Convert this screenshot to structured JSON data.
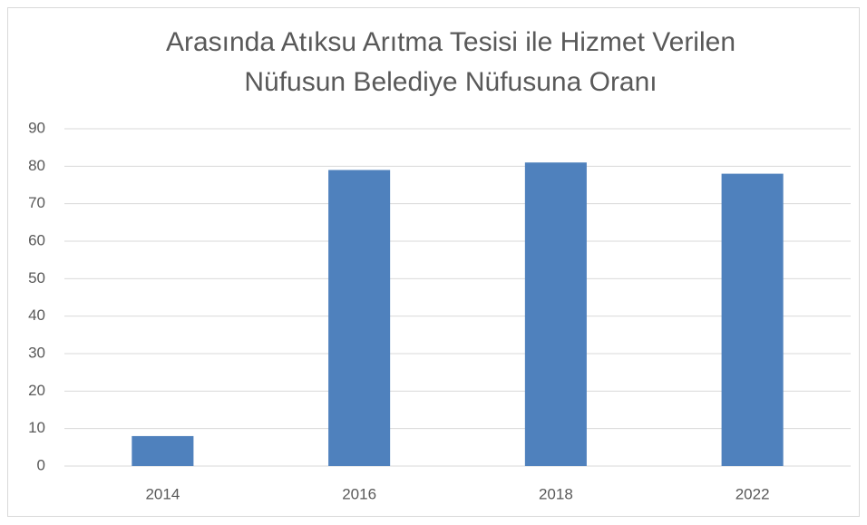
{
  "chart_data": {
    "type": "bar",
    "title": [
      "Arasında Atıksu Arıtma Tesisi ile Hizmet Verilen",
      "Nüfusun Belediye Nüfusuna Oranı"
    ],
    "categories": [
      "2014",
      "2016",
      "2018",
      "2022"
    ],
    "values": [
      8,
      79,
      81,
      78
    ],
    "color": "#4f81bd",
    "ylim": [
      0,
      90
    ],
    "yticks": [
      0,
      10,
      20,
      30,
      40,
      50,
      60,
      70,
      80,
      90
    ],
    "grid": true
  }
}
